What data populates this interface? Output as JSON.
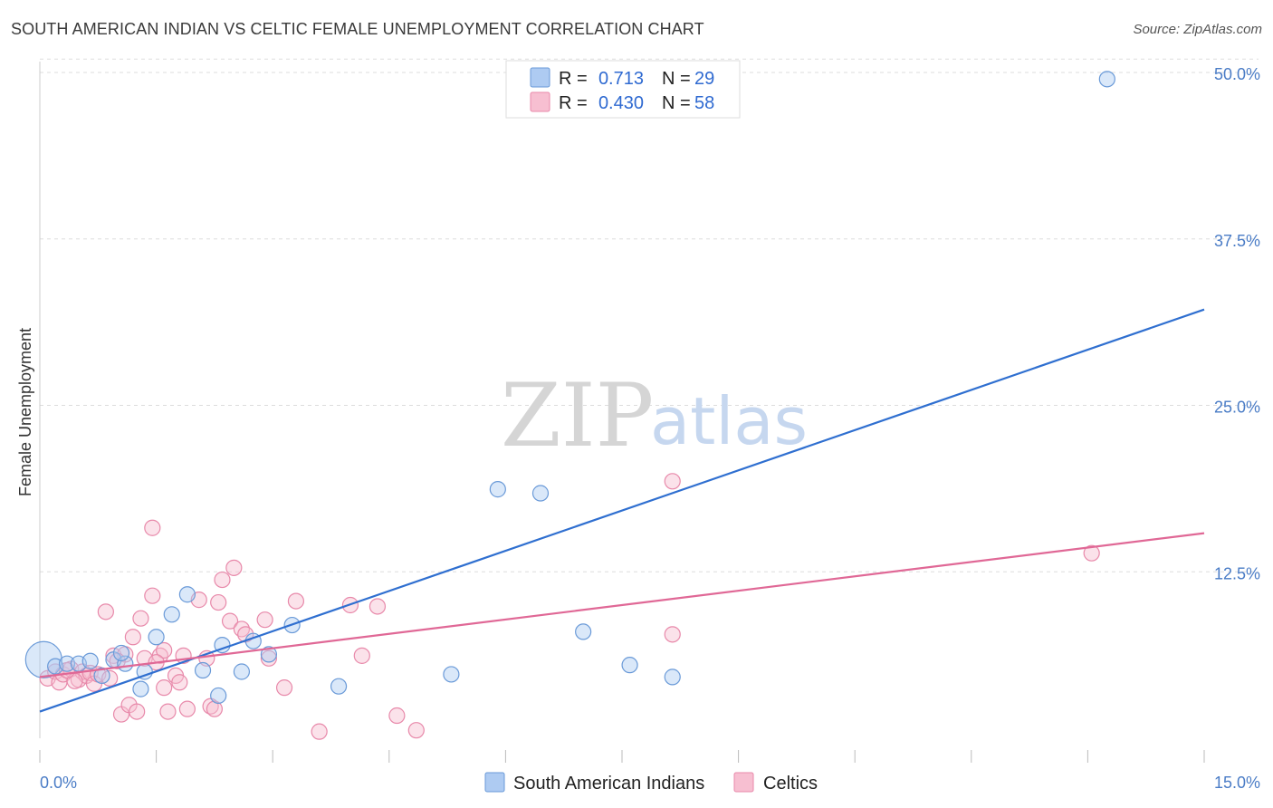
{
  "title": "SOUTH AMERICAN INDIAN VS CELTIC FEMALE UNEMPLOYMENT CORRELATION CHART",
  "source": "Source: ZipAtlas.com",
  "watermark": {
    "zip": "ZIP",
    "atlas": "atlas"
  },
  "colors": {
    "blue_fill": "#aecbf2",
    "blue_stroke": "#6a9ad8",
    "blue_line": "#2f6fd0",
    "pink_fill": "#f7bfd1",
    "pink_stroke": "#e889aa",
    "pink_line": "#e06896",
    "grid": "#dddddd",
    "tick": "#4a7cc6"
  },
  "legend_top": {
    "rows": [
      {
        "r_label": "R =",
        "r_value": "0.713",
        "n_label": "N =",
        "n_value": "29"
      },
      {
        "r_label": "R =",
        "r_value": "0.430",
        "n_label": "N =",
        "n_value": "58"
      }
    ]
  },
  "chart_data": {
    "type": "scatter",
    "title": "SOUTH AMERICAN INDIAN VS CELTIC FEMALE UNEMPLOYMENT CORRELATION CHART",
    "xlabel": "",
    "ylabel": "Female Unemployment",
    "xlim": [
      0,
      15
    ],
    "ylim": [
      0,
      51
    ],
    "x_tick_labels": [
      "0.0%",
      "15.0%"
    ],
    "y_ticks": [
      12.5,
      25.0,
      37.5,
      50.0
    ],
    "y_tick_labels": [
      "12.5%",
      "25.0%",
      "37.5%",
      "50.0%"
    ],
    "grid": true,
    "legend_position": "bottom-center",
    "series": [
      {
        "name": "South American Indians",
        "color": "#aecbf2",
        "r": 0.713,
        "n": 29,
        "trend": {
          "x": [
            0,
            15
          ],
          "y": [
            2.0,
            32.2
          ]
        },
        "points": [
          {
            "x": 0.05,
            "y": 5.9,
            "big": true
          },
          {
            "x": 0.2,
            "y": 5.4
          },
          {
            "x": 0.35,
            "y": 5.6
          },
          {
            "x": 0.5,
            "y": 5.6
          },
          {
            "x": 0.65,
            "y": 5.8
          },
          {
            "x": 0.8,
            "y": 4.7
          },
          {
            "x": 0.95,
            "y": 5.9
          },
          {
            "x": 1.1,
            "y": 5.6
          },
          {
            "x": 1.3,
            "y": 3.7
          },
          {
            "x": 1.5,
            "y": 7.6
          },
          {
            "x": 1.7,
            "y": 9.3
          },
          {
            "x": 1.9,
            "y": 10.8
          },
          {
            "x": 2.1,
            "y": 5.1
          },
          {
            "x": 2.3,
            "y": 3.2
          },
          {
            "x": 2.35,
            "y": 7.0
          },
          {
            "x": 2.6,
            "y": 5.0
          },
          {
            "x": 2.75,
            "y": 7.3
          },
          {
            "x": 2.95,
            "y": 6.3
          },
          {
            "x": 3.25,
            "y": 8.5
          },
          {
            "x": 3.85,
            "y": 3.9
          },
          {
            "x": 5.3,
            "y": 4.8
          },
          {
            "x": 5.9,
            "y": 18.7
          },
          {
            "x": 6.45,
            "y": 18.4
          },
          {
            "x": 7.0,
            "y": 8.0
          },
          {
            "x": 7.6,
            "y": 5.5
          },
          {
            "x": 8.15,
            "y": 4.6
          },
          {
            "x": 13.75,
            "y": 49.5
          },
          {
            "x": 1.05,
            "y": 6.4
          },
          {
            "x": 1.35,
            "y": 5.0
          }
        ]
      },
      {
        "name": "Celtics",
        "color": "#f7bfd1",
        "r": 0.43,
        "n": 58,
        "trend": {
          "x": [
            0,
            15
          ],
          "y": [
            4.6,
            15.4
          ]
        },
        "points": [
          {
            "x": 0.1,
            "y": 4.5
          },
          {
            "x": 0.2,
            "y": 5.0
          },
          {
            "x": 0.25,
            "y": 4.2
          },
          {
            "x": 0.3,
            "y": 4.8
          },
          {
            "x": 0.4,
            "y": 5.2
          },
          {
            "x": 0.5,
            "y": 4.4
          },
          {
            "x": 0.55,
            "y": 5.0
          },
          {
            "x": 0.6,
            "y": 4.7
          },
          {
            "x": 0.65,
            "y": 4.9
          },
          {
            "x": 0.7,
            "y": 4.1
          },
          {
            "x": 0.75,
            "y": 4.8
          },
          {
            "x": 0.85,
            "y": 9.5
          },
          {
            "x": 0.9,
            "y": 4.5
          },
          {
            "x": 0.95,
            "y": 6.2
          },
          {
            "x": 1.05,
            "y": 1.8
          },
          {
            "x": 1.1,
            "y": 6.3
          },
          {
            "x": 1.15,
            "y": 2.5
          },
          {
            "x": 1.2,
            "y": 7.6
          },
          {
            "x": 1.25,
            "y": 2.0
          },
          {
            "x": 1.3,
            "y": 9.0
          },
          {
            "x": 1.35,
            "y": 6.0
          },
          {
            "x": 1.45,
            "y": 10.7
          },
          {
            "x": 1.45,
            "y": 15.8
          },
          {
            "x": 1.55,
            "y": 6.2
          },
          {
            "x": 1.6,
            "y": 3.8
          },
          {
            "x": 1.6,
            "y": 6.6
          },
          {
            "x": 1.65,
            "y": 2.0
          },
          {
            "x": 1.75,
            "y": 4.7
          },
          {
            "x": 1.8,
            "y": 4.2
          },
          {
            "x": 1.85,
            "y": 6.2
          },
          {
            "x": 1.9,
            "y": 2.2
          },
          {
            "x": 2.05,
            "y": 10.4
          },
          {
            "x": 2.2,
            "y": 2.4
          },
          {
            "x": 2.25,
            "y": 2.2
          },
          {
            "x": 2.3,
            "y": 10.2
          },
          {
            "x": 2.35,
            "y": 11.9
          },
          {
            "x": 2.45,
            "y": 8.8
          },
          {
            "x": 2.5,
            "y": 12.8
          },
          {
            "x": 2.6,
            "y": 8.2
          },
          {
            "x": 2.65,
            "y": 7.8
          },
          {
            "x": 2.9,
            "y": 8.9
          },
          {
            "x": 2.95,
            "y": 6.0
          },
          {
            "x": 3.15,
            "y": 3.8
          },
          {
            "x": 3.3,
            "y": 10.3
          },
          {
            "x": 3.6,
            "y": 0.5
          },
          {
            "x": 4.0,
            "y": 10.0
          },
          {
            "x": 4.15,
            "y": 6.2
          },
          {
            "x": 4.35,
            "y": 9.9
          },
          {
            "x": 4.6,
            "y": 1.7
          },
          {
            "x": 4.85,
            "y": 0.6
          },
          {
            "x": 8.15,
            "y": 7.8
          },
          {
            "x": 8.15,
            "y": 19.3
          },
          {
            "x": 13.55,
            "y": 13.9
          },
          {
            "x": 1.0,
            "y": 5.8
          },
          {
            "x": 0.45,
            "y": 4.3
          },
          {
            "x": 0.35,
            "y": 5.1
          },
          {
            "x": 1.5,
            "y": 5.7
          },
          {
            "x": 2.15,
            "y": 6.0
          }
        ]
      }
    ]
  }
}
